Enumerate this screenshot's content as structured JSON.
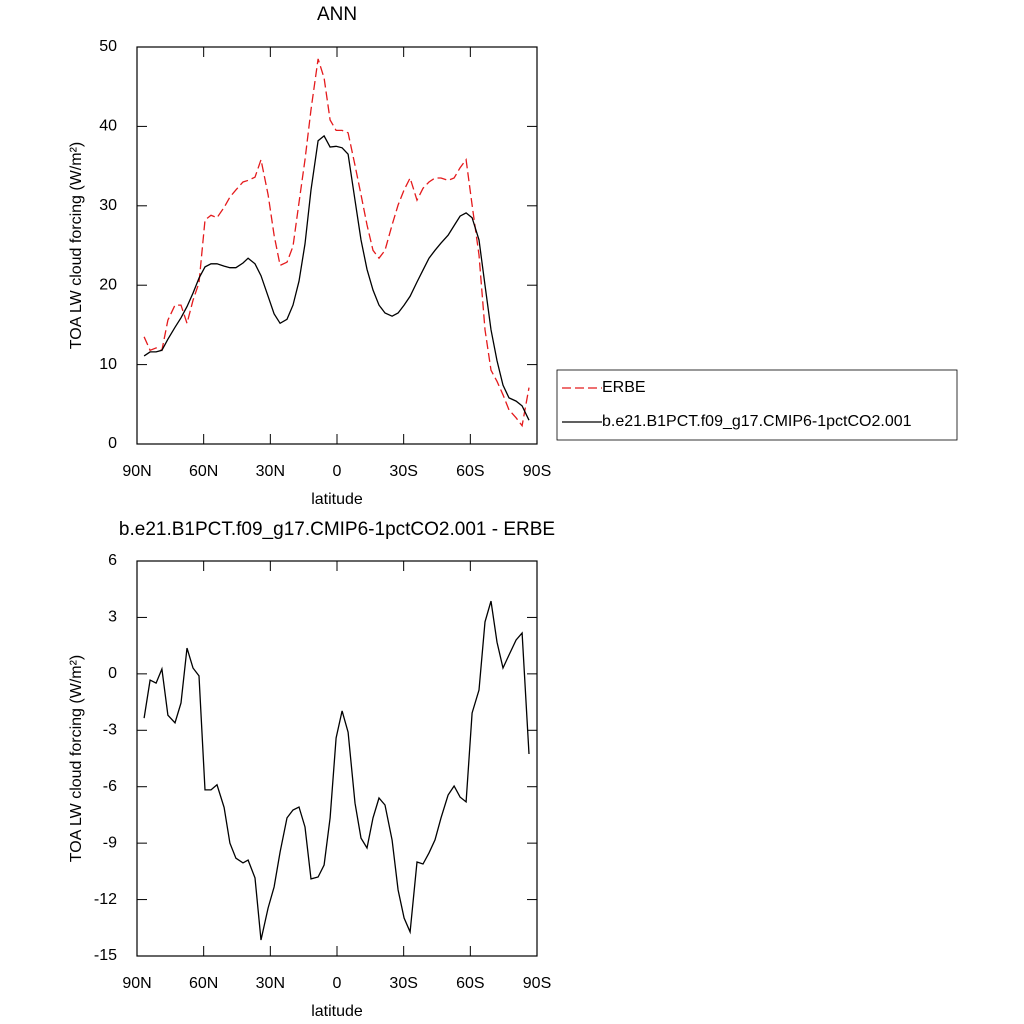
{
  "chart_data": [
    {
      "type": "line",
      "title": "ANN",
      "xlabel": "latitude",
      "ylabel": "TOA LW cloud forcing (W/m²)",
      "x": [
        86.8,
        84.1,
        81.4,
        78.8,
        76.1,
        72.9,
        70.2,
        67.5,
        64.8,
        62.1,
        59.4,
        56.7,
        54.0,
        50.8,
        48.2,
        45.5,
        42.3,
        40.0,
        36.9,
        34.2,
        31.0,
        28.3,
        25.6,
        22.5,
        19.8,
        17.1,
        14.4,
        11.7,
        8.5,
        5.8,
        3.1,
        0.4,
        -2.3,
        -5.0,
        -8.1,
        -10.8,
        -13.5,
        -16.2,
        -18.9,
        -21.6,
        -24.8,
        -27.5,
        -30.2,
        -32.9,
        -36.0,
        -38.7,
        -41.4,
        -44.1,
        -46.8,
        -50.0,
        -52.7,
        -55.4,
        -58.1,
        -60.8,
        -63.9,
        -66.6,
        -69.3,
        -72.0,
        -74.7,
        -77.4,
        -80.6,
        -83.3,
        -86.4
      ],
      "series": [
        {
          "name": "ERBE",
          "color": "#e41a1c",
          "line_style": "dashed",
          "values": [
            13.5,
            11.8,
            12.1,
            11.8,
            15.6,
            17.5,
            17.5,
            15.2,
            18.1,
            20.3,
            28.2,
            28.8,
            28.5,
            29.8,
            31.1,
            32.0,
            33.0,
            33.2,
            33.6,
            35.8,
            31.4,
            26.3,
            22.5,
            22.9,
            24.9,
            30.4,
            35.8,
            42.1,
            48.5,
            46.1,
            40.8,
            39.5,
            39.5,
            39.2,
            35.1,
            31.4,
            27.6,
            24.4,
            23.4,
            24.4,
            27.6,
            30.1,
            32.0,
            33.5,
            30.7,
            32.2,
            33.0,
            33.5,
            33.5,
            33.2,
            33.5,
            34.8,
            35.8,
            30.1,
            23.8,
            14.4,
            9.3,
            7.9,
            6.2,
            4.3,
            3.3,
            2.3,
            7.1
          ]
        },
        {
          "name": "b.e21.B1PCT.f09_g17.CMIP6-1pctCO2.001",
          "color": "#000000",
          "line_style": "solid",
          "values": [
            11.1,
            11.6,
            11.6,
            11.8,
            13.2,
            14.7,
            15.9,
            17.3,
            19.0,
            20.9,
            22.3,
            22.7,
            22.7,
            22.4,
            22.2,
            22.2,
            22.8,
            23.4,
            22.7,
            21.2,
            18.6,
            16.4,
            15.2,
            15.7,
            17.5,
            20.5,
            25.2,
            32.0,
            38.2,
            38.8,
            37.4,
            37.5,
            37.3,
            36.5,
            30.7,
            25.7,
            22.0,
            19.4,
            17.5,
            16.5,
            16.1,
            16.5,
            17.5,
            18.6,
            20.4,
            21.9,
            23.4,
            24.4,
            25.3,
            26.3,
            27.5,
            28.7,
            29.1,
            28.5,
            25.7,
            20.0,
            14.4,
            10.5,
            7.4,
            5.8,
            5.4,
            4.8,
            3.0
          ]
        }
      ],
      "xlim": [
        90,
        -90
      ],
      "xticks": [
        {
          "value": 90,
          "label": "90N"
        },
        {
          "value": 60,
          "label": "60N"
        },
        {
          "value": 30,
          "label": "30N"
        },
        0,
        {
          "value": -30,
          "label": "30S"
        },
        {
          "value": -60,
          "label": "60S"
        },
        {
          "value": -90,
          "label": "90S"
        }
      ],
      "ylim": [
        0,
        50
      ],
      "yticks": [
        0,
        10,
        20,
        30,
        40,
        50
      ],
      "legend": "right"
    },
    {
      "type": "line",
      "title": "b.e21.B1PCT.f09_g17.CMIP6-1pctCO2.001 - ERBE",
      "xlabel": "latitude",
      "ylabel": "TOA LW cloud forcing (W/m²)",
      "x": [
        86.8,
        84.1,
        81.4,
        78.8,
        76.1,
        72.9,
        70.2,
        67.5,
        64.8,
        62.1,
        59.4,
        56.7,
        54.0,
        50.8,
        48.2,
        45.5,
        42.3,
        40.0,
        36.9,
        34.2,
        31.0,
        28.3,
        25.6,
        22.5,
        19.8,
        17.1,
        14.4,
        11.7,
        8.5,
        5.8,
        3.1,
        0.4,
        -2.3,
        -5.0,
        -8.1,
        -10.8,
        -13.5,
        -16.2,
        -18.9,
        -21.6,
        -24.8,
        -27.5,
        -30.2,
        -32.9,
        -36.0,
        -38.7,
        -41.4,
        -44.1,
        -46.8,
        -50.0,
        -52.7,
        -55.4,
        -58.1,
        -60.8,
        -63.9,
        -66.6,
        -69.3,
        -72.0,
        -74.7,
        -77.4,
        -80.6,
        -83.3,
        -86.4
      ],
      "values": [
        -2.35,
        -0.33,
        -0.49,
        0.26,
        -2.2,
        -2.6,
        -1.55,
        1.37,
        0.31,
        -0.11,
        -6.17,
        -6.17,
        -5.9,
        -7.1,
        -9.0,
        -9.8,
        -10.05,
        -9.9,
        -10.85,
        -14.15,
        -12.45,
        -11.33,
        -9.47,
        -7.66,
        -7.24,
        -7.08,
        -8.14,
        -10.9,
        -10.8,
        -10.16,
        -7.66,
        -3.41,
        -1.97,
        -3.1,
        -6.87,
        -8.73,
        -9.26,
        -7.66,
        -6.6,
        -6.97,
        -8.84,
        -11.49,
        -12.98,
        -13.72,
        -10.0,
        -10.11,
        -9.52,
        -8.83,
        -7.66,
        -6.44,
        -5.96,
        -6.55,
        -6.81,
        -2.08,
        -0.86,
        2.76,
        3.87,
        1.69,
        0.31,
        1.0,
        1.8,
        2.17,
        -4.26
      ],
      "color": "#000000",
      "xlim": [
        90,
        -90
      ],
      "xticks": [
        {
          "value": 90,
          "label": "90N"
        },
        {
          "value": 60,
          "label": "60N"
        },
        {
          "value": 30,
          "label": "30N"
        },
        0,
        {
          "value": -30,
          "label": "30S"
        },
        {
          "value": -60,
          "label": "60S"
        },
        {
          "value": -90,
          "label": "90S"
        }
      ],
      "ylim": [
        -15,
        6
      ],
      "yticks": [
        -15,
        -12,
        -9,
        -6,
        -3,
        0,
        3,
        6
      ]
    }
  ]
}
